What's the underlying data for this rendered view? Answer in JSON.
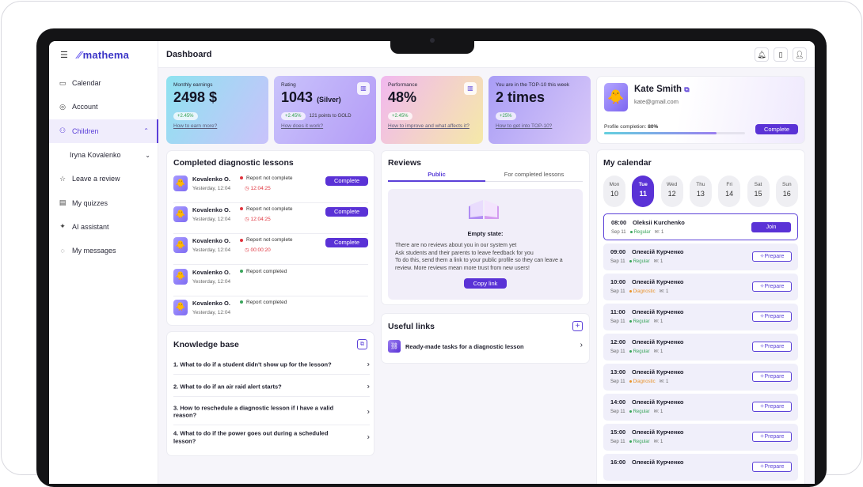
{
  "app": {
    "brand": "mathema",
    "page_title": "Dashboard"
  },
  "sidebar": {
    "items": [
      {
        "label": "Calendar",
        "icon": "calendar-icon"
      },
      {
        "label": "Account",
        "icon": "user-circle-icon"
      },
      {
        "label": "Children",
        "icon": "children-icon",
        "active": true
      },
      {
        "label": "Iryna Kovalenko",
        "sub": true
      },
      {
        "label": "Leave a review",
        "icon": "star-icon"
      },
      {
        "label": "My quizzes",
        "icon": "quiz-icon"
      },
      {
        "label": "AI assistant",
        "icon": "sparkle-icon"
      },
      {
        "label": "My messages",
        "icon": "chat-icon"
      }
    ]
  },
  "stats": [
    {
      "label": "Monthly earnings",
      "value": "2498 $",
      "change": "+2.45%",
      "link": "How to earn more?",
      "color_from": "#8ee3f0",
      "color_to": "#c9c2fb"
    },
    {
      "label": "Rating",
      "value": "1043",
      "value_suffix": "(Silver)",
      "change": "+2.45%",
      "extra": "121 points to GOLD",
      "link": "How does it work?",
      "color_from": "#c9c3fb",
      "color_to": "#b49cf7"
    },
    {
      "label": "Performance",
      "value": "48%",
      "change": "+2.45%",
      "link": "How to improve and what affects it?",
      "color_from": "#f1b8ef",
      "color_to": "#f5e9a8"
    },
    {
      "label": "You are in the TOP-10 this week",
      "value": "2 times",
      "change": "+25%",
      "link": "How to get into TOP-10?",
      "color_from": "#a99df6",
      "color_to": "#d8c8f8"
    }
  ],
  "profile": {
    "name": "Kate Smith",
    "email": "kate@gmail.com",
    "completion_label": "Profile completion:",
    "completion_value": "80%",
    "completion": 0.8,
    "button": "Complete"
  },
  "diagnostic": {
    "title": "Completed diagnostic lessons",
    "rows": [
      {
        "name": "Kovalenko O.",
        "date": "Yesterday, 12:04",
        "status": "Report not complete",
        "timer": "12:04:25",
        "button": "Complete"
      },
      {
        "name": "Kovalenko O.",
        "date": "Yesterday, 12:04",
        "status": "Report not complete",
        "timer": "12:04:25",
        "button": "Complete"
      },
      {
        "name": "Kovalenko O.",
        "date": "Yesterday, 12:04",
        "status": "Report not complete",
        "timer": "00:00:20",
        "button": "Complete"
      },
      {
        "name": "Kovalenko O.",
        "date": "Yesterday, 12:04",
        "status": "Report completed"
      },
      {
        "name": "Kovalenko O.",
        "date": "Yesterday, 12:04",
        "status": "Report completed"
      }
    ]
  },
  "knowledge": {
    "title": "Knowledge base",
    "items": [
      "1. What to do if a student didn't show up for the lesson?",
      "2. What to do if an air raid alert starts?",
      "3. How to reschedule a diagnostic lesson if I have a valid reason?",
      "4. What to do if the power goes out during a scheduled lesson?"
    ]
  },
  "reviews": {
    "title": "Reviews",
    "tabs": [
      "Public",
      "For completed lessons"
    ],
    "empty_title": "Empty state:",
    "empty_lines": [
      "There are no reviews about you in our system yet",
      "Ask students and their parents to leave feedback for you",
      "To do this, send them a link to your public profile so they can leave a review. More reviews mean more trust from new users!"
    ],
    "button": "Copy link"
  },
  "links": {
    "title": "Useful links",
    "items": [
      "Ready-made tasks for a diagnostic lesson"
    ]
  },
  "calendar": {
    "title": "My calendar",
    "days": [
      {
        "dow": "Mon",
        "num": "10"
      },
      {
        "dow": "Tue",
        "num": "11",
        "active": true
      },
      {
        "dow": "Wed",
        "num": "12"
      },
      {
        "dow": "Thu",
        "num": "13"
      },
      {
        "dow": "Fri",
        "num": "14"
      },
      {
        "dow": "Sat",
        "num": "15"
      },
      {
        "dow": "Sun",
        "num": "16"
      }
    ],
    "events": [
      {
        "time": "08:00",
        "name": "Oleksii Kurchenko",
        "date": "Sep 11",
        "tag": "Regular",
        "count": "1",
        "action": "Join"
      },
      {
        "time": "09:00",
        "name": "Олексій Курченко",
        "date": "Sep 11",
        "tag": "Regular",
        "count": "1",
        "action": "Prepare"
      },
      {
        "time": "10:00",
        "name": "Олексій Курченко",
        "date": "Sep 11",
        "tag": "Diagnostic",
        "count": "1",
        "action": "Prepare"
      },
      {
        "time": "11:00",
        "name": "Олексій Курченко",
        "date": "Sep 11",
        "tag": "Regular",
        "count": "1",
        "action": "Prepare"
      },
      {
        "time": "12:00",
        "name": "Олексій Курченко",
        "date": "Sep 11",
        "tag": "Regular",
        "count": "1",
        "action": "Prepare"
      },
      {
        "time": "13:00",
        "name": "Олексій Курченко",
        "date": "Sep 11",
        "tag": "Diagnostic",
        "count": "1",
        "action": "Prepare"
      },
      {
        "time": "14:00",
        "name": "Олексій Курченко",
        "date": "Sep 11",
        "tag": "Regular",
        "count": "1",
        "action": "Prepare"
      },
      {
        "time": "15:00",
        "name": "Олексій Курченко",
        "date": "Sep 11",
        "tag": "Regular",
        "count": "1",
        "action": "Prepare"
      },
      {
        "time": "16:00",
        "name": "Олексій Курченко",
        "date": "",
        "tag": "",
        "count": "",
        "action": "Prepare"
      }
    ]
  },
  "colors": {
    "accent": "#5a32d6",
    "regular": "#3aa55b",
    "diagnostic": "#e8932c",
    "alert": "#e0343e"
  }
}
